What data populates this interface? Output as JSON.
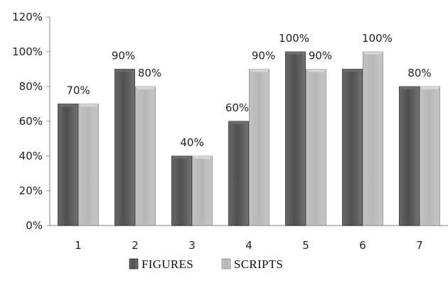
{
  "chart_data": {
    "type": "bar",
    "categories": [
      "1",
      "2",
      "3",
      "4",
      "5",
      "6",
      "7"
    ],
    "series": [
      {
        "name": "FIGURES",
        "values": [
          70,
          90,
          40,
          60,
          100,
          90,
          80
        ],
        "color": "#4f4f4f"
      },
      {
        "name": "SCRIPTS",
        "values": [
          70,
          80,
          40,
          90,
          90,
          100,
          80
        ],
        "color": "#b8b8b8"
      }
    ],
    "ylim": [
      0,
      120
    ],
    "yticks": [
      "0%",
      "20%",
      "40%",
      "60%",
      "80%",
      "100%",
      "120%"
    ],
    "ytick_values": [
      0,
      20,
      40,
      60,
      80,
      100,
      120
    ],
    "data_labels": [
      {
        "category": "1",
        "text": "70%",
        "value": 70
      },
      {
        "category": "2",
        "text": "90%",
        "value": 90,
        "align": "left"
      },
      {
        "category": "2",
        "text": "80%",
        "value": 80,
        "align": "right"
      },
      {
        "category": "3",
        "text": "40%",
        "value": 40
      },
      {
        "category": "4",
        "text": "60%",
        "value": 60,
        "align": "left"
      },
      {
        "category": "4",
        "text": "90%",
        "value": 90,
        "align": "right"
      },
      {
        "category": "5",
        "text": "100%",
        "value": 100,
        "align": "left"
      },
      {
        "category": "5",
        "text": "90%",
        "value": 90,
        "align": "right"
      },
      {
        "category": "6",
        "text": "100%",
        "value": 100,
        "align": "right"
      },
      {
        "category": "7",
        "text": "80%",
        "value": 80
      }
    ],
    "legend_position": "bottom",
    "grid": false,
    "title": "",
    "xlabel": "",
    "ylabel": ""
  }
}
